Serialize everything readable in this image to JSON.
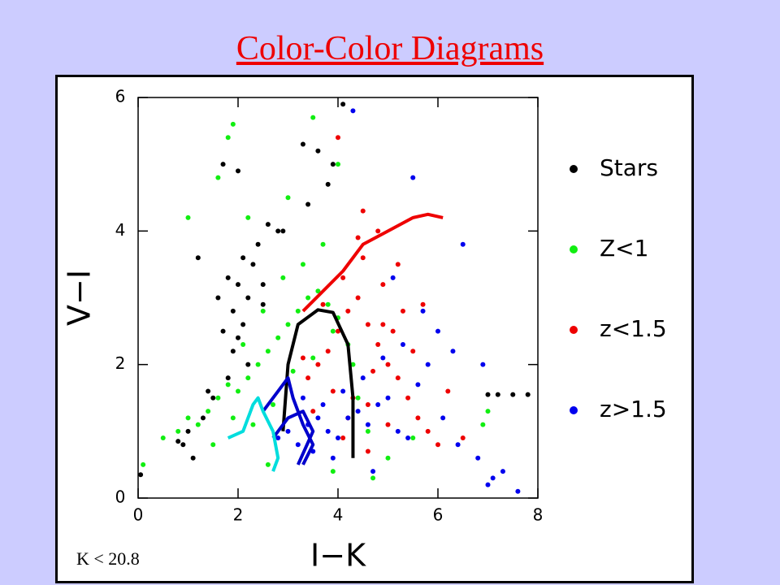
{
  "chart_data": {
    "type": "scatter",
    "title": "Color-Color Diagrams",
    "xlabel": "I−K",
    "ylabel": "V−I",
    "annotation": "K < 20.8",
    "xlim": [
      0,
      8
    ],
    "ylim": [
      0,
      6
    ],
    "xticks": [
      0,
      2,
      4,
      6,
      8
    ],
    "yticks": [
      0,
      2,
      4,
      6
    ],
    "series": [
      {
        "name": "Stars",
        "color": "#000000",
        "x": [
          1.6,
          1.8,
          1.9,
          2.0,
          2.1,
          2.2,
          2.3,
          2.0,
          1.9,
          2.1,
          2.4,
          2.5,
          1.7,
          2.2,
          1.8,
          2.6,
          1.5,
          1.3,
          1.0,
          2.9,
          3.3,
          3.6,
          3.8,
          1.7,
          0.9,
          0.8,
          1.2,
          1.4,
          2.5,
          2.0,
          7.0,
          7.2,
          7.5,
          7.8,
          4.1,
          0.05,
          3.4,
          3.9,
          2.8,
          1.1
        ],
        "values": [
          3.0,
          3.3,
          2.8,
          3.2,
          2.6,
          3.0,
          3.5,
          2.4,
          2.2,
          3.6,
          3.8,
          3.2,
          2.5,
          2.0,
          1.8,
          4.1,
          1.5,
          1.2,
          1.0,
          4.0,
          5.3,
          5.2,
          4.7,
          5.0,
          0.8,
          0.85,
          3.6,
          1.6,
          2.9,
          4.9,
          1.55,
          1.55,
          1.55,
          1.55,
          5.9,
          0.35,
          4.4,
          5.0,
          4.0,
          0.6
        ]
      },
      {
        "name": "Z<1",
        "color": "#11ee11",
        "x": [
          0.5,
          0.8,
          1.0,
          1.2,
          1.4,
          1.6,
          1.8,
          2.0,
          2.2,
          2.4,
          2.6,
          2.8,
          3.0,
          3.2,
          3.4,
          3.6,
          3.8,
          4.0,
          4.2,
          4.4,
          1.5,
          1.9,
          2.3,
          2.7,
          3.1,
          3.5,
          3.9,
          4.3,
          2.1,
          2.5,
          2.9,
          3.3,
          3.7,
          1.9,
          2.2,
          1.6,
          1.8,
          3.0,
          3.5,
          4.0,
          4.6,
          5.0,
          5.5,
          7.0,
          1.0,
          0.1,
          2.6,
          3.9,
          4.7,
          6.9
        ],
        "values": [
          0.9,
          1.0,
          1.2,
          1.1,
          1.3,
          1.5,
          1.7,
          1.6,
          1.8,
          2.0,
          2.2,
          2.4,
          2.6,
          2.8,
          3.0,
          3.1,
          2.9,
          2.7,
          2.3,
          1.5,
          0.8,
          1.2,
          1.1,
          1.4,
          1.9,
          2.1,
          2.5,
          2.0,
          2.3,
          2.8,
          3.3,
          3.5,
          3.8,
          5.6,
          4.2,
          4.8,
          5.4,
          4.5,
          5.7,
          5.0,
          1.0,
          0.6,
          0.9,
          1.3,
          4.2,
          0.5,
          0.5,
          0.4,
          0.3,
          1.1
        ]
      },
      {
        "name": "z<1.5",
        "color": "#ee0000",
        "x": [
          3.4,
          3.6,
          3.8,
          4.0,
          4.2,
          4.4,
          4.6,
          4.8,
          5.0,
          5.2,
          5.4,
          5.6,
          5.8,
          6.0,
          3.7,
          4.1,
          4.5,
          4.9,
          5.3,
          4.3,
          4.7,
          5.1,
          5.5,
          3.9,
          4.2,
          4.6,
          5.0,
          3.5,
          4.4,
          4.8,
          5.7,
          6.2,
          6.5,
          4.0,
          4.5,
          3.3,
          5.2,
          4.9,
          4.1,
          4.6
        ],
        "values": [
          1.8,
          2.0,
          2.2,
          2.5,
          2.8,
          3.0,
          2.6,
          2.3,
          2.0,
          1.8,
          1.5,
          1.2,
          1.0,
          0.8,
          2.9,
          3.3,
          3.6,
          3.2,
          2.8,
          1.5,
          1.9,
          2.5,
          2.2,
          1.6,
          1.2,
          1.4,
          1.1,
          1.3,
          3.9,
          4.0,
          2.9,
          1.6,
          0.9,
          5.4,
          4.3,
          2.1,
          3.5,
          2.6,
          0.9,
          0.7
        ]
      },
      {
        "name": "z>1.5",
        "color": "#0000ee",
        "x": [
          2.8,
          3.0,
          3.2,
          3.4,
          3.6,
          3.8,
          4.0,
          4.2,
          4.4,
          4.6,
          4.8,
          5.0,
          5.2,
          5.4,
          5.6,
          5.8,
          6.0,
          6.4,
          6.8,
          7.1,
          7.3,
          7.6,
          3.3,
          3.7,
          4.1,
          4.5,
          4.9,
          5.3,
          5.7,
          6.1,
          6.5,
          6.9,
          4.3,
          4.7,
          5.1,
          3.5,
          3.9,
          6.3,
          7.0,
          5.5
        ],
        "values": [
          0.9,
          1.0,
          0.8,
          1.1,
          1.2,
          1.0,
          0.9,
          1.2,
          1.3,
          1.1,
          1.4,
          1.5,
          1.0,
          0.9,
          1.7,
          2.0,
          2.5,
          0.8,
          0.6,
          0.3,
          0.4,
          0.1,
          1.5,
          1.4,
          1.6,
          1.8,
          2.1,
          2.3,
          2.8,
          1.2,
          3.8,
          2.0,
          5.8,
          0.4,
          3.3,
          0.7,
          0.6,
          2.2,
          0.2,
          4.8
        ]
      }
    ],
    "curves": [
      {
        "color": "#000000",
        "x": [
          2.9,
          3.0,
          3.2,
          3.6,
          3.9,
          4.2,
          4.3,
          4.3
        ],
        "values": [
          1.0,
          2.0,
          2.6,
          2.82,
          2.78,
          2.3,
          1.5,
          0.6
        ]
      },
      {
        "color": "#ee0000",
        "x": [
          3.3,
          3.7,
          4.1,
          4.5,
          5.0,
          5.5,
          5.8,
          6.1
        ],
        "values": [
          2.8,
          3.1,
          3.4,
          3.8,
          4.0,
          4.2,
          4.25,
          4.2
        ]
      },
      {
        "color": "#0000cc",
        "x": [
          2.5,
          2.8,
          3.0,
          3.1,
          3.3,
          3.5,
          3.3
        ],
        "values": [
          1.3,
          1.6,
          1.8,
          1.5,
          1.1,
          0.8,
          0.5
        ]
      },
      {
        "color": "#0000cc",
        "x": [
          2.7,
          3.0,
          3.3,
          3.5,
          3.2
        ],
        "values": [
          0.9,
          1.2,
          1.3,
          1.0,
          0.5
        ]
      },
      {
        "color": "#00dddd",
        "x": [
          1.8,
          2.1,
          2.3,
          2.4,
          2.5,
          2.7,
          2.8,
          2.7
        ],
        "values": [
          0.9,
          1.0,
          1.4,
          1.5,
          1.3,
          1.0,
          0.6,
          0.4
        ]
      }
    ]
  }
}
